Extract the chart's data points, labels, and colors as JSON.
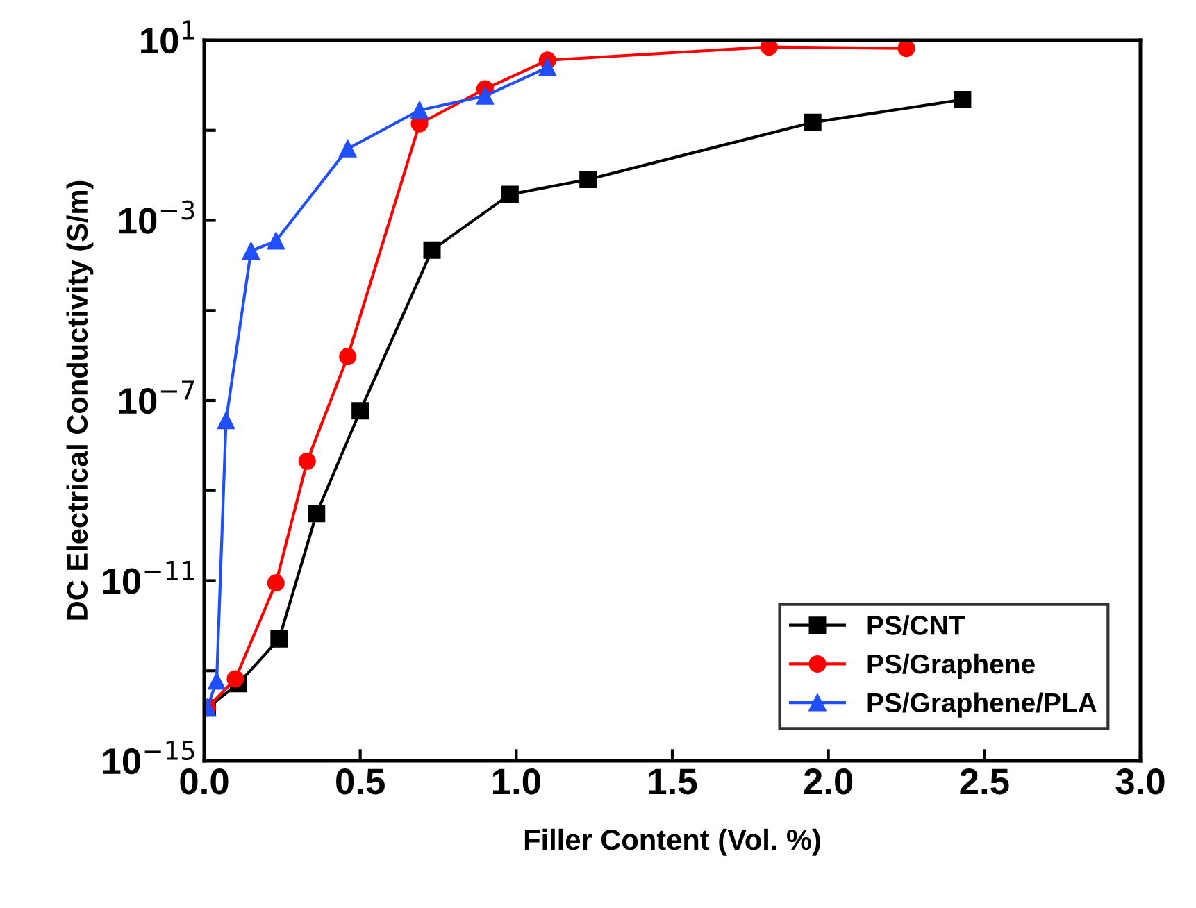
{
  "chart_data": {
    "type": "line",
    "xlabel": "Filler Content (Vol. %)",
    "ylabel": "DC Electrical Conductivity (S/m)",
    "log": "y",
    "line_style": "solid",
    "legend": "bottom right",
    "grid": false,
    "xlim": [
      0,
      3.0
    ],
    "xticks": [
      {
        "value": 0,
        "label": "0.0"
      },
      0.5,
      {
        "value": 1,
        "label": "1.0"
      },
      1.5,
      {
        "value": 2,
        "label": "2.0"
      },
      2.5,
      {
        "value": 3,
        "label": "3.0"
      }
    ],
    "ylim": [
      1e-15,
      10
    ],
    "yticks": [
      {
        "value": 1e-15,
        "label": "10$^{−15}$"
      },
      {
        "value": 1e-13,
        "label": null
      },
      {
        "value": 1e-11,
        "label": "10$^{−11}$"
      },
      {
        "value": 1e-09,
        "label": null
      },
      {
        "value": 1e-07,
        "label": "10$^{−7}$"
      },
      {
        "value": 1e-05,
        "label": null
      },
      {
        "value": 0.001,
        "label": "10$^{−3}$"
      },
      {
        "value": 0.1,
        "label": null
      },
      {
        "value": 10,
        "label": "10$^{1}$"
      }
    ],
    "series": [
      {
        "name": "PS/CNT",
        "color": "#000000",
        "marker": "square",
        "x": [
          0.01,
          0.11,
          0.24,
          0.36,
          0.5,
          0.73,
          0.98,
          1.23,
          1.95,
          2.43
        ],
        "values": [
          1.5e-14,
          5.2e-14,
          5.1e-13,
          3.1e-10,
          5.9e-08,
          0.00022,
          0.0038,
          0.0081,
          0.15,
          0.48
        ]
      },
      {
        "name": "PS/Graphene",
        "color": "#ff0000",
        "marker": "circle",
        "x": [
          0.01,
          0.1,
          0.23,
          0.33,
          0.46,
          0.69,
          0.9,
          1.1,
          1.81,
          2.25
        ],
        "values": [
          1.5e-14,
          6.6e-14,
          8.9e-12,
          4.5e-09,
          9.5e-07,
          0.14,
          0.83,
          3.6,
          7.1,
          6.6
        ]
      },
      {
        "name": "PS/Graphene/PLA",
        "color": "#1f4fff",
        "marker": "triangle",
        "x": [
          0.01,
          0.04,
          0.07,
          0.15,
          0.23,
          0.46,
          0.69,
          0.9,
          1.1
        ],
        "values": [
          1.5e-14,
          5.9e-14,
          3.6e-08,
          0.00021,
          0.00035,
          0.039,
          0.28,
          0.58,
          2.5
        ]
      }
    ]
  }
}
